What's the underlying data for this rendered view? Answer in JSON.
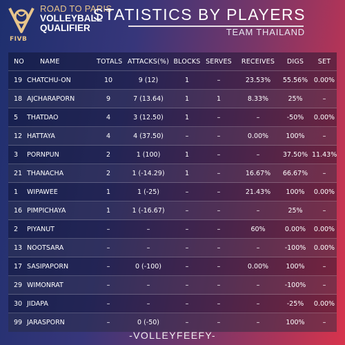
{
  "header": {
    "logo_line1": "ROAD TO PARIS",
    "logo_line2": "VOLLEYBALL",
    "logo_line3": "QUALIFIER",
    "logo_brand": "FIVB",
    "title": "STATISTICS BY PLAYERS",
    "subtitle": "TEAM THAILAND"
  },
  "table": {
    "columns": [
      "NO",
      "NAME",
      "TOTALS",
      "ATTACKS(%)",
      "BLOCKS",
      "SERVES",
      "RECEIVES",
      "DIGS",
      "SET"
    ],
    "rows": [
      {
        "no": "19",
        "name": "CHATCHU-ON",
        "totals": "10",
        "attacks": "9 (12)",
        "blocks": "1",
        "serves": "–",
        "receives": "23.53%",
        "digs": "55.56%",
        "set": "0.00%"
      },
      {
        "no": "18",
        "name": "AJCHARAPORN",
        "totals": "9",
        "attacks": "7 (13.64)",
        "blocks": "1",
        "serves": "1",
        "receives": "8.33%",
        "digs": "25%",
        "set": "–"
      },
      {
        "no": "5",
        "name": "THATDAO",
        "totals": "4",
        "attacks": "3 (12.50)",
        "blocks": "1",
        "serves": "–",
        "receives": "–",
        "digs": "-50%",
        "set": "0.00%"
      },
      {
        "no": "12",
        "name": "HATTAYA",
        "totals": "4",
        "attacks": "4 (37.50)",
        "blocks": "–",
        "serves": "–",
        "receives": "0.00%",
        "digs": "100%",
        "set": "–"
      },
      {
        "no": "3",
        "name": "PORNPUN",
        "totals": "2",
        "attacks": "1 (100)",
        "blocks": "1",
        "serves": "–",
        "receives": "–",
        "digs": "37.50%",
        "set": "11.43%"
      },
      {
        "no": "21",
        "name": "THANACHA",
        "totals": "2",
        "attacks": "1 (-14.29)",
        "blocks": "1",
        "serves": "–",
        "receives": "16.67%",
        "digs": "66.67%",
        "set": "–"
      },
      {
        "no": "1",
        "name": "WIPAWEE",
        "totals": "1",
        "attacks": "1 (-25)",
        "blocks": "–",
        "serves": "–",
        "receives": "21.43%",
        "digs": "100%",
        "set": "0.00%"
      },
      {
        "no": "16",
        "name": "PIMPICHAYA",
        "totals": "1",
        "attacks": "1 (-16.67)",
        "blocks": "–",
        "serves": "–",
        "receives": "–",
        "digs": "25%",
        "set": "–"
      },
      {
        "no": "2",
        "name": "PIYANUT",
        "totals": "–",
        "attacks": "–",
        "blocks": "–",
        "serves": "–",
        "receives": "60%",
        "digs": "0.00%",
        "set": "0.00%"
      },
      {
        "no": "13",
        "name": "NOOTSARA",
        "totals": "–",
        "attacks": "–",
        "blocks": "–",
        "serves": "–",
        "receives": "–",
        "digs": "-100%",
        "set": "0.00%"
      },
      {
        "no": "17",
        "name": "SASIPAPORN",
        "totals": "–",
        "attacks": "0 (-100)",
        "blocks": "–",
        "serves": "–",
        "receives": "0.00%",
        "digs": "100%",
        "set": "–"
      },
      {
        "no": "29",
        "name": "WIMONRAT",
        "totals": "–",
        "attacks": "–",
        "blocks": "–",
        "serves": "–",
        "receives": "–",
        "digs": "-100%",
        "set": "–"
      },
      {
        "no": "30",
        "name": "JIDAPA",
        "totals": "–",
        "attacks": "–",
        "blocks": "–",
        "serves": "–",
        "receives": "–",
        "digs": "-25%",
        "set": "0.00%"
      },
      {
        "no": "99",
        "name": "JARASPORN",
        "totals": "–",
        "attacks": "0 (-50)",
        "blocks": "–",
        "serves": "–",
        "receives": "–",
        "digs": "100%",
        "set": "–"
      }
    ]
  },
  "footer": "-VOLLEYFEEFY-",
  "colors": {
    "gold": "#e8c58b",
    "bg_left": "#1e2f6e",
    "bg_right": "#d8334c"
  }
}
